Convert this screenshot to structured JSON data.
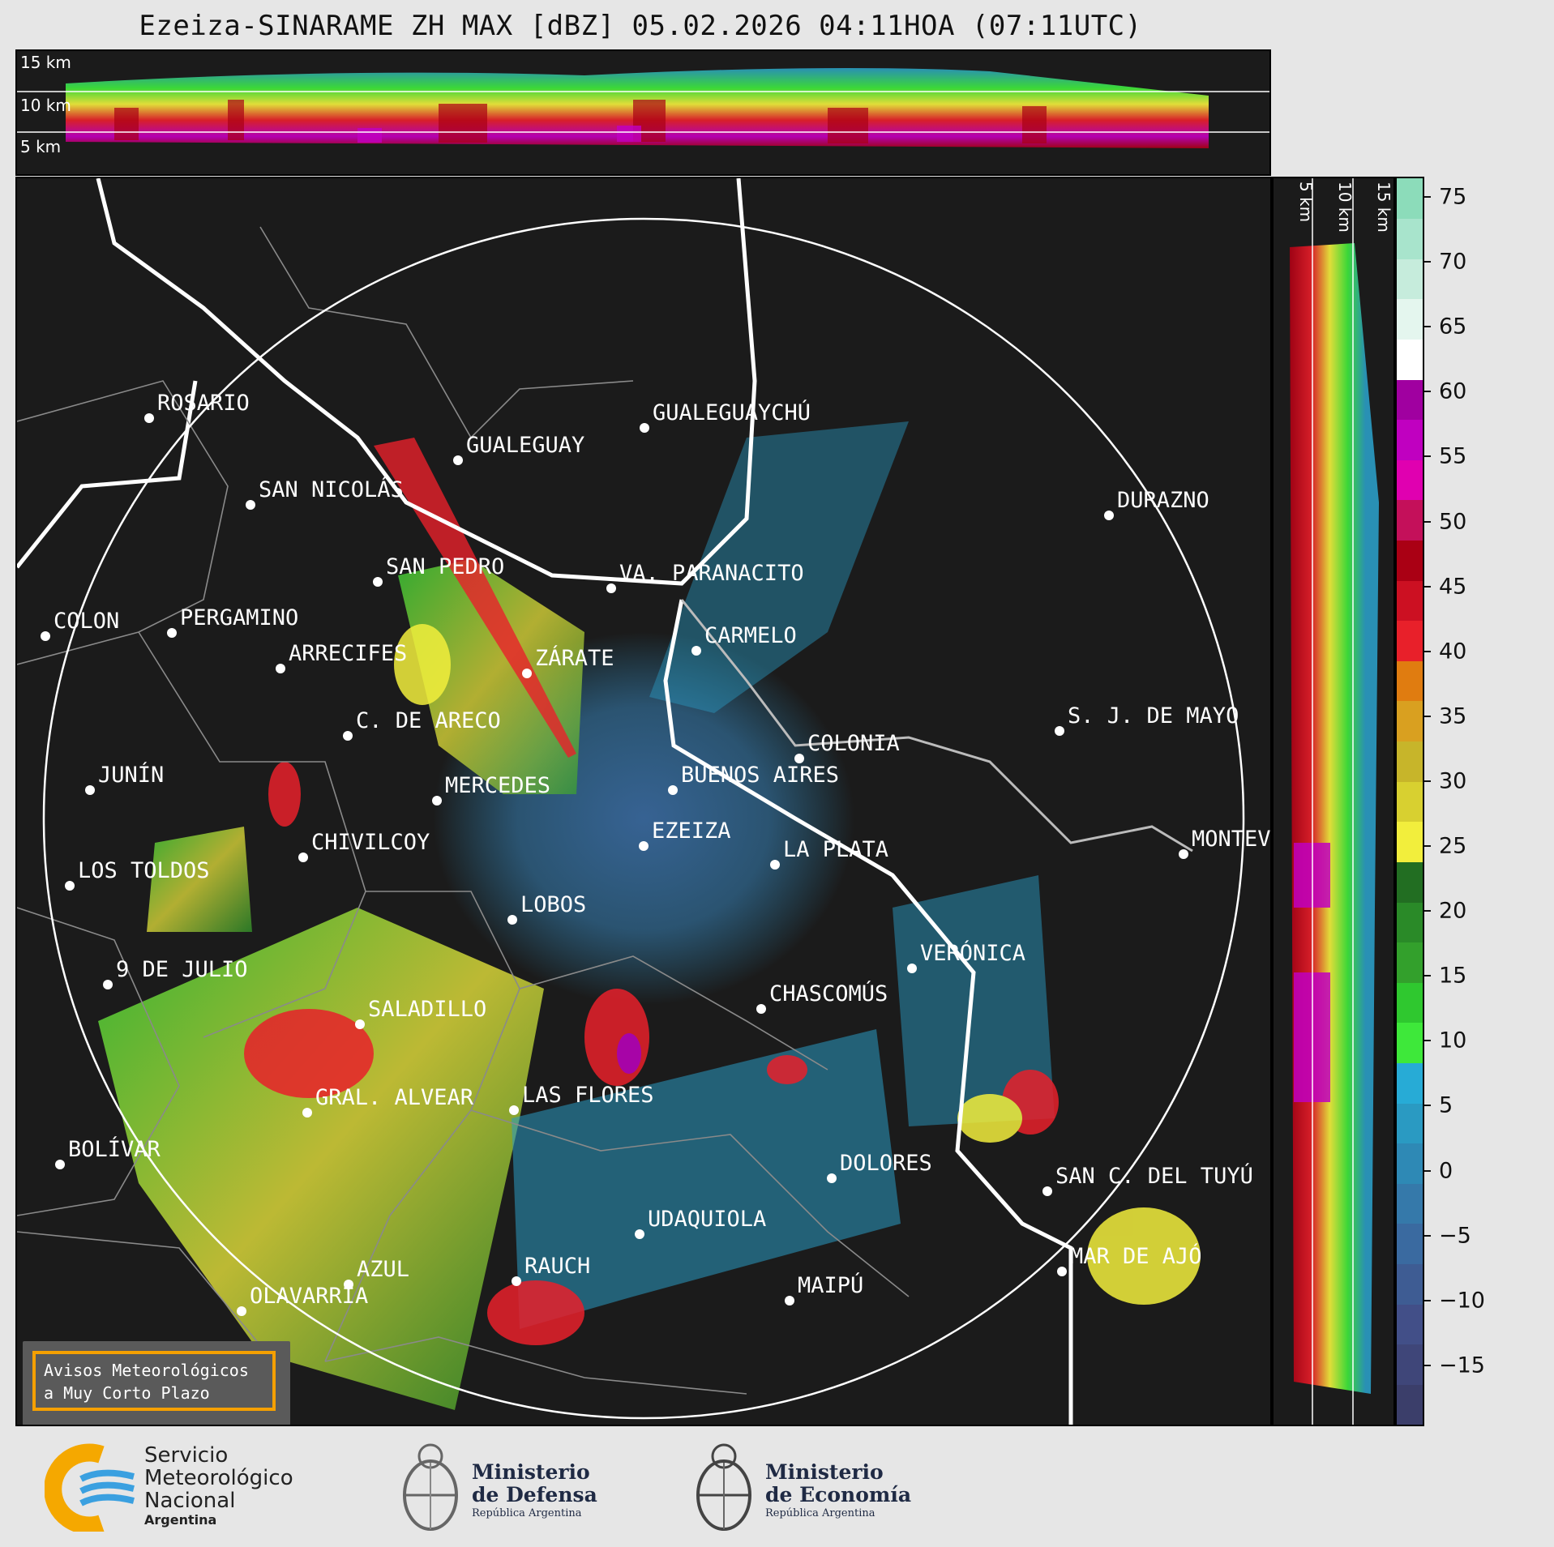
{
  "title": "Ezeiza-SINARAME ZH MAX [dBZ] 05.02.2026 04:11HOA (07:11UTC)",
  "top_panel": {
    "altitudes": [
      "15 km",
      "10 km",
      "5 km"
    ]
  },
  "right_panel": {
    "altitudes": [
      "5 km",
      "10 km",
      "15 km"
    ]
  },
  "colorbar": {
    "unit": "dBZ",
    "ticks": [
      "75",
      "70",
      "65",
      "60",
      "55",
      "50",
      "45",
      "40",
      "35",
      "30",
      "25",
      "20",
      "15",
      "10",
      "5",
      "0",
      "−5",
      "−10",
      "−15"
    ],
    "colors": [
      "#3b3e6a",
      "#3f4679",
      "#424f88",
      "#3e5c93",
      "#3a6aa0",
      "#3579aa",
      "#2e89b5",
      "#2a9ac2",
      "#27abd6",
      "#3ee83a",
      "#2fc82f",
      "#33a02c",
      "#2a8a28",
      "#226e22",
      "#f2ee3c",
      "#d8d030",
      "#c7b52a",
      "#d9a020",
      "#e07c10",
      "#e8202a",
      "#cc1022",
      "#aa0014",
      "#c4105a",
      "#e000b0",
      "#c000c0",
      "#a000a0",
      "#ffffff",
      "#e4f6ee",
      "#c6ecdc",
      "#a8e4cc",
      "#8cdcba"
    ]
  },
  "cities": [
    {
      "name": "ROSARIO"
    },
    {
      "name": "GUALEGUAYCHÚ"
    },
    {
      "name": "GUALEGUAY"
    },
    {
      "name": "SAN NICOLÁS"
    },
    {
      "name": "DURAZNO"
    },
    {
      "name": "SAN PEDRO"
    },
    {
      "name": "VA. PARANACITO"
    },
    {
      "name": "COLON"
    },
    {
      "name": "PERGAMINO"
    },
    {
      "name": "CARMELO"
    },
    {
      "name": "ARRECIFES"
    },
    {
      "name": "ZÁRATE"
    },
    {
      "name": "S. J. DE MAYO"
    },
    {
      "name": "C. DE ARECO"
    },
    {
      "name": "COLONIA"
    },
    {
      "name": "JUNÍN"
    },
    {
      "name": "BUENOS AIRES"
    },
    {
      "name": "MERCEDES"
    },
    {
      "name": "MONTEVIDEO"
    },
    {
      "name": "EZEIZA"
    },
    {
      "name": "CHIVILCOY"
    },
    {
      "name": "LA PLATA"
    },
    {
      "name": "LOS TOLDOS"
    },
    {
      "name": "LOBOS"
    },
    {
      "name": "VERÓNICA"
    },
    {
      "name": "9 DE JULIO"
    },
    {
      "name": "CHASCOMÚS"
    },
    {
      "name": "SALADILLO"
    },
    {
      "name": "GRAL. ALVEAR"
    },
    {
      "name": "LAS FLORES"
    },
    {
      "name": "BOLÍVAR"
    },
    {
      "name": "DOLORES"
    },
    {
      "name": "SAN C. DEL TUYÚ"
    },
    {
      "name": "UDAQUIOLA"
    },
    {
      "name": "MAR DE AJÓ"
    },
    {
      "name": "AZUL"
    },
    {
      "name": "RAUCH"
    },
    {
      "name": "OLAVARRÍA"
    },
    {
      "name": "MAIPÚ"
    }
  ],
  "warning_box": {
    "line1": "Avisos Meteorológicos",
    "line2": "a Muy Corto Plazo"
  },
  "logos": {
    "smn": {
      "line1": "Servicio",
      "line2": "Meteorológico",
      "line3": "Nacional",
      "line4": "Argentina"
    },
    "defensa": {
      "line1": "Ministerio",
      "line2": "de Defensa",
      "line3": "República Argentina"
    },
    "economia": {
      "line1": "Ministerio",
      "line2": "de Economía",
      "line3": "República Argentina"
    }
  }
}
